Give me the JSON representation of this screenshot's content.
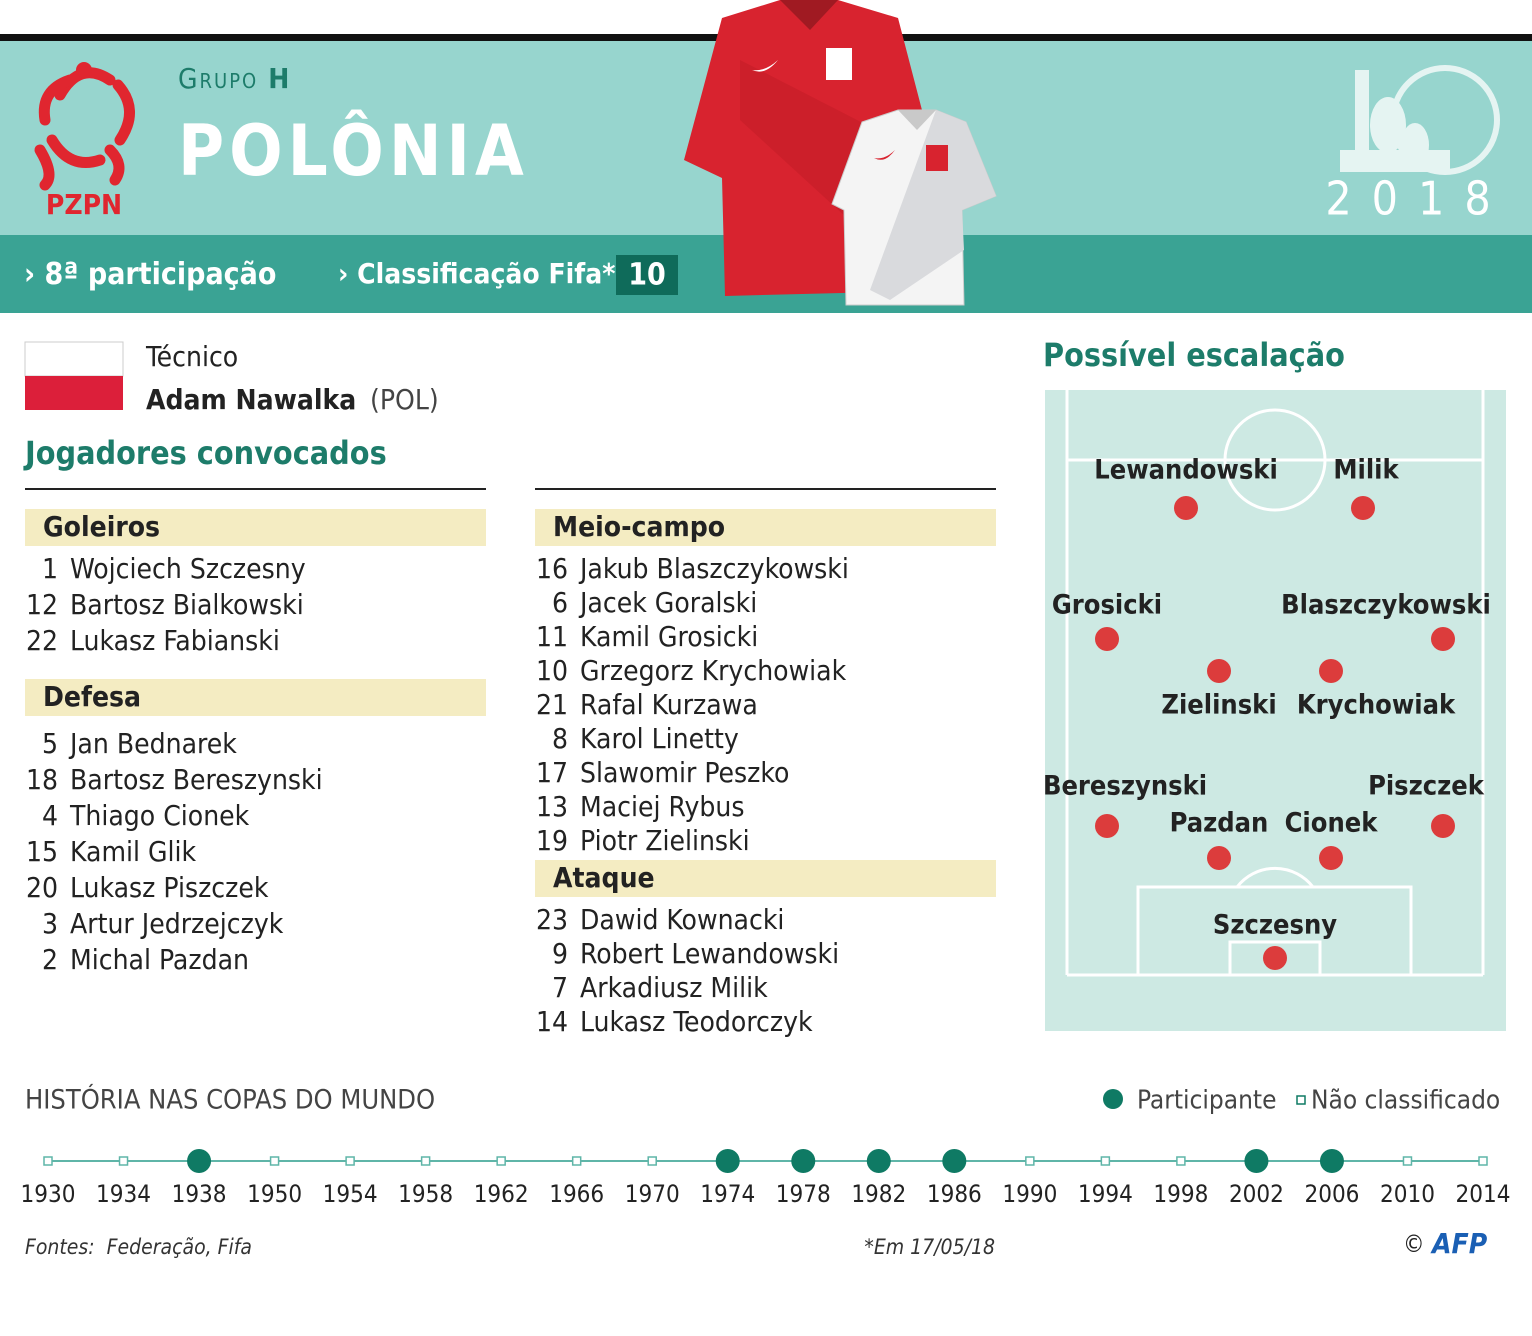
{
  "header": {
    "group_label": "Grupo",
    "group_letter": "H",
    "team": "POLÔNIA",
    "logo_text": "PZPN",
    "cup_year": "2018"
  },
  "stats": {
    "participation": "8ª participação",
    "fifa_label": "Classificação Fifa*",
    "fifa_rank": 10
  },
  "coach": {
    "label": "Técnico",
    "name": "Adam Nawalka",
    "country": "(POL)"
  },
  "squad": {
    "title": "Jogadores convocados",
    "groups": [
      {
        "name": "Goleiros",
        "players": [
          {
            "number": 1,
            "name": "Wojciech Szczesny"
          },
          {
            "number": 12,
            "name": "Bartosz Bialkowski"
          },
          {
            "number": 22,
            "name": "Lukasz Fabianski"
          }
        ]
      },
      {
        "name": "Defesa",
        "players": [
          {
            "number": 5,
            "name": "Jan Bednarek"
          },
          {
            "number": 18,
            "name": "Bartosz Bereszynski"
          },
          {
            "number": 4,
            "name": "Thiago Cionek"
          },
          {
            "number": 15,
            "name": "Kamil Glik"
          },
          {
            "number": 20,
            "name": "Lukasz Piszczek"
          },
          {
            "number": 3,
            "name": "Artur Jedrzejczyk"
          },
          {
            "number": 2,
            "name": "Michal Pazdan"
          }
        ]
      },
      {
        "name": "Meio-campo",
        "players": [
          {
            "number": 16,
            "name": "Jakub Blaszczykowski"
          },
          {
            "number": 6,
            "name": "Jacek Goralski"
          },
          {
            "number": 11,
            "name": "Kamil Grosicki"
          },
          {
            "number": 10,
            "name": "Grzegorz Krychowiak"
          },
          {
            "number": 21,
            "name": "Rafal Kurzawa"
          },
          {
            "number": 8,
            "name": "Karol Linetty"
          },
          {
            "number": 17,
            "name": "Slawomir Peszko"
          },
          {
            "number": 13,
            "name": "Maciej Rybus"
          },
          {
            "number": 19,
            "name": "Piotr Zielinski"
          }
        ]
      },
      {
        "name": "Ataque",
        "players": [
          {
            "number": 23,
            "name": "Dawid Kownacki"
          },
          {
            "number": 9,
            "name": "Robert Lewandowski"
          },
          {
            "number": 7,
            "name": "Arkadiusz Milik"
          },
          {
            "number": 14,
            "name": "Lukasz Teodorczyk"
          }
        ]
      }
    ]
  },
  "lineup": {
    "title": "Possível escalação",
    "players": [
      "Lewandowski",
      "Milik",
      "Grosicki",
      "Blaszczykowski",
      "Zielinski",
      "Krychowiak",
      "Bereszynski",
      "Piszczek",
      "Pazdan",
      "Cionek",
      "Szczesny"
    ]
  },
  "history": {
    "title": "HISTÓRIA NAS COPAS DO MUNDO",
    "legend_participant": "Participante",
    "legend_not_qualified": "Não classificado",
    "years": [
      {
        "year": 1930,
        "participated": false
      },
      {
        "year": 1934,
        "participated": false
      },
      {
        "year": 1938,
        "participated": true
      },
      {
        "year": 1950,
        "participated": false
      },
      {
        "year": 1954,
        "participated": false
      },
      {
        "year": 1958,
        "participated": false
      },
      {
        "year": 1962,
        "participated": false
      },
      {
        "year": 1966,
        "participated": false
      },
      {
        "year": 1970,
        "participated": false
      },
      {
        "year": 1974,
        "participated": true
      },
      {
        "year": 1978,
        "participated": true
      },
      {
        "year": 1982,
        "participated": true
      },
      {
        "year": 1986,
        "participated": true
      },
      {
        "year": 1990,
        "participated": false
      },
      {
        "year": 1994,
        "participated": false
      },
      {
        "year": 1998,
        "participated": false
      },
      {
        "year": 2002,
        "participated": true
      },
      {
        "year": 2006,
        "participated": true
      },
      {
        "year": 2010,
        "participated": false
      },
      {
        "year": 2014,
        "participated": false
      }
    ]
  },
  "footer": {
    "sources": "Fontes:  Federação, Fifa",
    "note": "*Em 17/05/18",
    "copyright": "©",
    "agency": "AFP"
  }
}
